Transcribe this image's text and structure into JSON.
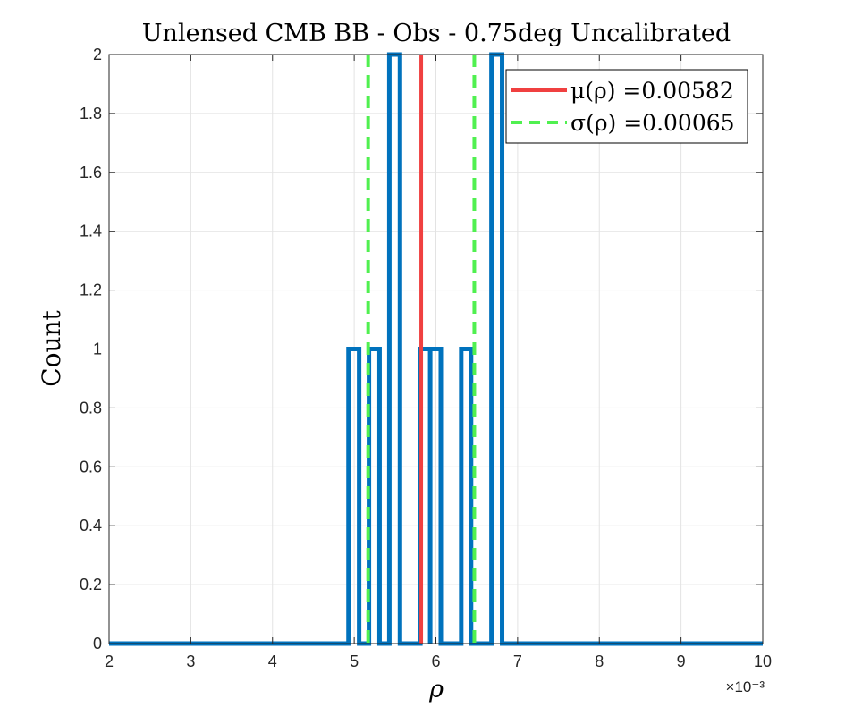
{
  "chart_data": {
    "type": "histogram",
    "title": "Unlensed CMB BB - Obs - 0.75deg Uncalibrated",
    "xlabel": "ρ",
    "ylabel": "Count",
    "x_exponent_label": "×10⁻³",
    "x_scale": 0.001,
    "xlim": [
      2,
      10
    ],
    "ylim": [
      0,
      2
    ],
    "xticks": [
      2,
      3,
      4,
      5,
      6,
      7,
      8,
      9,
      10
    ],
    "yticks": [
      0,
      0.2,
      0.4,
      0.6,
      0.8,
      1,
      1.2,
      1.4,
      1.6,
      1.8,
      2
    ],
    "xtick_labels": [
      "2",
      "3",
      "4",
      "5",
      "6",
      "7",
      "8",
      "9",
      "10"
    ],
    "ytick_labels": [
      "0",
      "0.2",
      "0.4",
      "0.6",
      "0.8",
      "1",
      "1.2",
      "1.4",
      "1.6",
      "1.8",
      "2"
    ],
    "grid": true,
    "histogram": {
      "color": "#0072BD",
      "bin_edges": [
        4.93,
        5.06,
        5.18,
        5.31,
        5.43,
        5.56,
        5.68,
        5.81,
        5.93,
        6.06,
        6.18,
        6.31,
        6.43,
        6.56,
        6.68,
        6.81
      ],
      "counts": [
        1,
        0,
        1,
        0,
        2,
        0,
        0,
        1,
        1,
        0,
        0,
        1,
        0,
        0,
        2
      ]
    },
    "reference_lines": [
      {
        "label": "μ(ρ) =0.00582",
        "x": 5.82,
        "color": "#F04040",
        "style": "solid"
      },
      {
        "label": "σ(ρ) =0.00065",
        "x": 5.17,
        "color": "#50F050",
        "style": "dashed"
      },
      {
        "label": "σ(ρ) =0.00065",
        "x": 6.47,
        "color": "#50F050",
        "style": "dashed"
      }
    ],
    "legend": {
      "position": "top-right",
      "entries": [
        {
          "label": "μ(ρ) =0.00582",
          "color": "#F04040",
          "style": "solid"
        },
        {
          "label": "σ(ρ) =0.00065",
          "color": "#50F050",
          "style": "dashed"
        }
      ]
    }
  }
}
